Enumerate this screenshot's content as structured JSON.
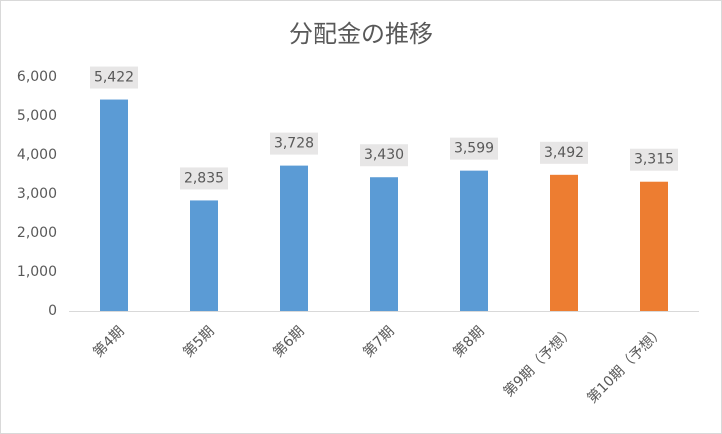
{
  "chart_data": {
    "type": "bar",
    "title": "分配金の推移",
    "categories": [
      "第4期",
      "第5期",
      "第6期",
      "第7期",
      "第8期",
      "第9期（予想）",
      "第10期（予想）"
    ],
    "values": [
      5422,
      2835,
      3728,
      3430,
      3599,
      3492,
      3315
    ],
    "value_labels": [
      "5,422",
      "2,835",
      "3,728",
      "3,430",
      "3,599",
      "3,492",
      "3,315"
    ],
    "colors": [
      "#5b9bd5",
      "#5b9bd5",
      "#5b9bd5",
      "#5b9bd5",
      "#5b9bd5",
      "#ed7d31",
      "#ed7d31"
    ],
    "ylim": [
      0,
      6000
    ],
    "yticks": [
      0,
      {
        "value": 1000,
        "label": "1,000"
      },
      {
        "value": 2000,
        "label": "2,000"
      },
      {
        "value": 3000,
        "label": "3,000"
      },
      {
        "value": 4000,
        "label": "4,000"
      },
      {
        "value": 5000,
        "label": "5,000"
      },
      {
        "value": 6000,
        "label": "6,000"
      }
    ],
    "grid": false
  }
}
